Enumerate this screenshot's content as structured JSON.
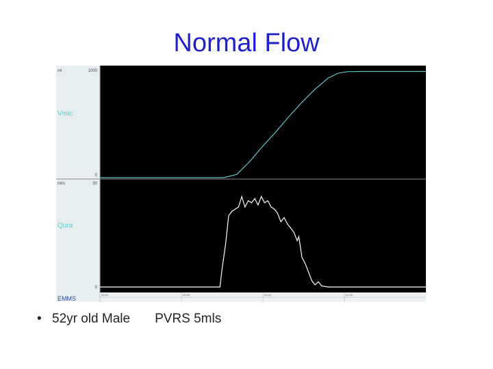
{
  "slide": {
    "title": "Normal Flow",
    "bullet_marker": "•",
    "bullet_left": "52yr old Male",
    "bullet_right": "PVRS 5mls"
  },
  "chart_data": [
    {
      "type": "line",
      "name": "Vmic",
      "left_label": "ml",
      "top_tick": "1000",
      "bottom_tick": "0",
      "ylim": [
        0,
        1000
      ],
      "color": "#5fc7c7",
      "x": [
        0,
        10,
        20,
        30,
        38,
        42,
        46,
        50,
        54,
        58,
        62,
        66,
        70,
        73,
        76,
        80,
        100
      ],
      "values": [
        0,
        0,
        0,
        0,
        0,
        30,
        150,
        290,
        420,
        560,
        690,
        810,
        910,
        955,
        970,
        972,
        972
      ]
    },
    {
      "type": "line",
      "name": "Qura",
      "left_label": "ml/s",
      "top_tick": "50",
      "bottom_tick": "0",
      "ylim": [
        0,
        50
      ],
      "color": "#ffffff",
      "x": [
        0,
        36.8,
        37.5,
        38.5,
        39.5,
        40.5,
        41.5,
        42.5,
        43.5,
        44.5,
        45.5,
        46.5,
        47.5,
        48.5,
        49.5,
        50.5,
        51.5,
        52.5,
        53.5,
        54.5,
        55.5,
        56.5,
        57.5,
        58.5,
        59.5,
        60.5,
        61,
        62,
        63,
        64,
        65,
        66,
        67,
        68,
        70,
        80,
        100
      ],
      "values": [
        0,
        0,
        9,
        20,
        34,
        36,
        37,
        38,
        43,
        38,
        41,
        40,
        42,
        39,
        43,
        40,
        41,
        38,
        37,
        35,
        31,
        33,
        30,
        28,
        26,
        22,
        24,
        14,
        11,
        7,
        3,
        1,
        2.5,
        0.5,
        0,
        0,
        0
      ]
    }
  ],
  "footer": {
    "brand": "EMMS",
    "tick_labels": [
      "00:00",
      "00:30",
      "01:00",
      "01:30"
    ]
  },
  "colors": {
    "background": "#000000",
    "left_panel": "#e7eef2",
    "label_cyan": "#5fc7c7",
    "title_blue": "#1f1fd0"
  }
}
